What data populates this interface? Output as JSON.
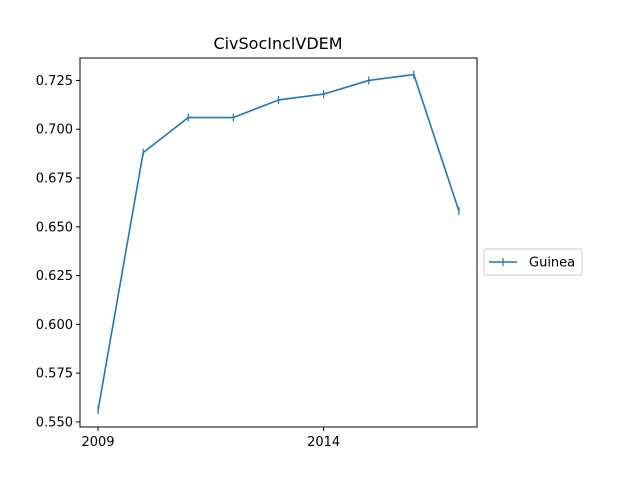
{
  "chart_data": {
    "type": "line",
    "title": "CivSocInclVDEM",
    "xlabel": "",
    "ylabel": "",
    "x": [
      2009,
      2010,
      2011,
      2012,
      2013,
      2014,
      2015,
      2016,
      2017
    ],
    "series": [
      {
        "name": "Guinea",
        "color": "#1f77b4",
        "marker": "vertical-tick",
        "values": [
          0.556,
          0.688,
          0.706,
          0.706,
          0.715,
          0.718,
          0.725,
          0.728,
          0.658
        ]
      }
    ],
    "xticks": [
      2009,
      2014
    ],
    "xtick_labels": [
      "2009",
      "2014"
    ],
    "yticks": [
      0.55,
      0.575,
      0.6,
      0.625,
      0.65,
      0.675,
      0.7,
      0.725
    ],
    "ytick_labels": [
      "0.550",
      "0.575",
      "0.600",
      "0.625",
      "0.650",
      "0.675",
      "0.700",
      "0.725"
    ],
    "xlim": [
      2008.6,
      2017.4
    ],
    "ylim": [
      0.5474,
      0.7365
    ],
    "grid": false,
    "legend": {
      "placement": "right-outside",
      "entries": [
        "Guinea"
      ]
    }
  }
}
